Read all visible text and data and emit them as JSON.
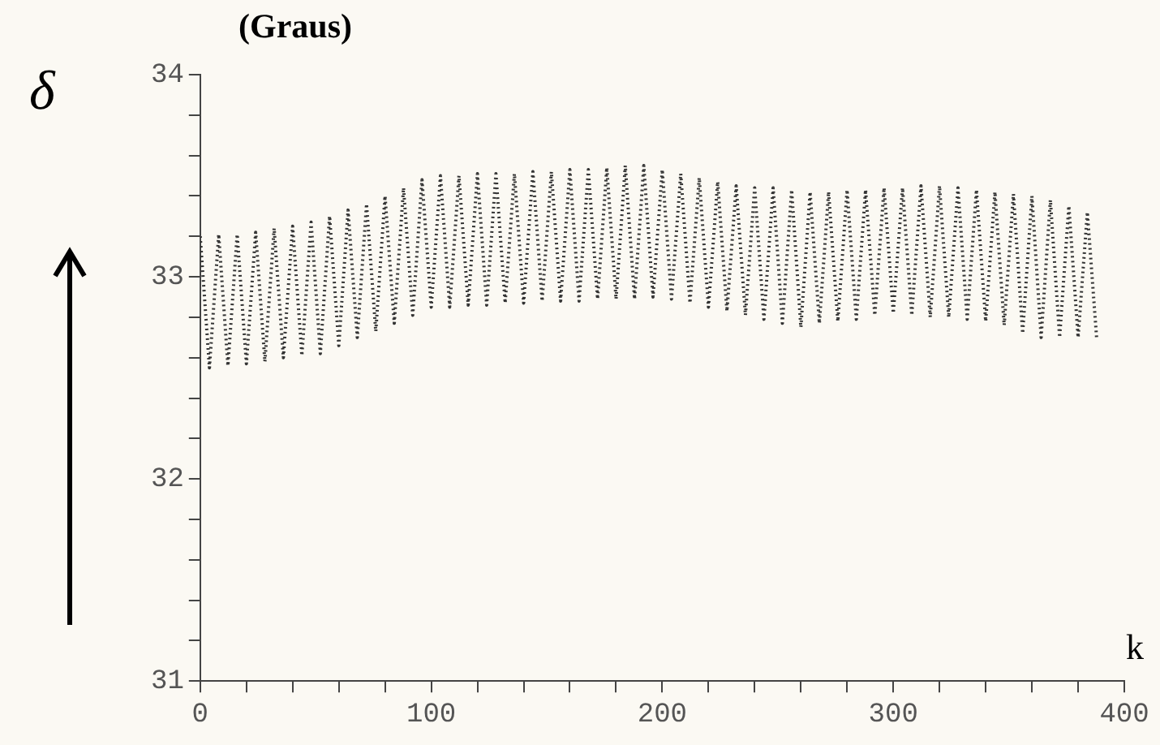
{
  "chart_data": {
    "type": "line",
    "ylabel": "δ",
    "xlabel": "k",
    "annotations": [
      "(Graus)"
    ],
    "x": [
      0,
      4,
      8,
      12,
      16,
      20,
      24,
      28,
      32,
      36,
      40,
      44,
      48,
      52,
      56,
      60,
      64,
      68,
      72,
      76,
      80,
      84,
      88,
      92,
      96,
      100,
      104,
      108,
      112,
      116,
      120,
      124,
      128,
      132,
      136,
      140,
      144,
      148,
      152,
      156,
      160,
      164,
      168,
      172,
      176,
      180,
      184,
      188,
      192,
      196,
      200,
      204,
      208,
      212,
      216,
      220,
      224,
      228,
      232,
      236,
      240,
      244,
      248,
      252,
      256,
      260,
      264,
      268,
      272,
      276,
      280,
      284,
      288,
      292,
      296,
      300,
      304,
      308,
      312,
      316,
      320,
      324,
      328,
      332,
      336,
      340,
      344,
      348,
      352,
      356,
      360,
      364,
      368,
      372,
      376,
      380,
      384,
      388
    ],
    "series": [
      {
        "color": "#333333",
        "values": [
          33.2,
          32.55,
          33.21,
          32.56,
          33.21,
          32.57,
          33.22,
          32.58,
          33.24,
          32.6,
          33.25,
          32.61,
          33.27,
          32.62,
          33.3,
          32.66,
          33.33,
          32.7,
          33.36,
          32.73,
          33.4,
          32.77,
          33.44,
          32.81,
          33.48,
          32.85,
          33.5,
          32.85,
          33.5,
          32.86,
          33.51,
          32.86,
          33.51,
          32.87,
          33.51,
          32.87,
          33.52,
          32.88,
          33.52,
          32.88,
          33.53,
          32.88,
          33.53,
          32.89,
          33.54,
          32.89,
          33.55,
          32.89,
          33.55,
          32.9,
          33.53,
          32.89,
          33.51,
          32.87,
          33.49,
          32.85,
          33.47,
          32.83,
          33.45,
          32.81,
          33.44,
          32.79,
          33.44,
          32.77,
          33.43,
          32.75,
          33.42,
          32.77,
          33.42,
          32.78,
          33.43,
          32.79,
          33.43,
          32.81,
          33.44,
          32.82,
          33.44,
          32.81,
          33.45,
          32.8,
          33.45,
          32.8,
          33.44,
          32.79,
          33.43,
          32.78,
          33.42,
          32.76,
          33.41,
          32.72,
          33.4,
          32.7,
          33.38,
          32.7,
          33.35,
          32.7,
          33.32,
          32.7
        ]
      }
    ],
    "xlim": [
      0,
      400
    ],
    "xticks": [
      0,
      {
        "value": 20,
        "label": null
      },
      {
        "value": 40,
        "label": null
      },
      {
        "value": 60,
        "label": null
      },
      {
        "value": 80,
        "label": null
      },
      100,
      {
        "value": 120,
        "label": null
      },
      {
        "value": 140,
        "label": null
      },
      {
        "value": 160,
        "label": null
      },
      {
        "value": 180,
        "label": null
      },
      200,
      {
        "value": 220,
        "label": null
      },
      {
        "value": 240,
        "label": null
      },
      {
        "value": 260,
        "label": null
      },
      {
        "value": 280,
        "label": null
      },
      300,
      {
        "value": 320,
        "label": null
      },
      {
        "value": 340,
        "label": null
      },
      {
        "value": 360,
        "label": null
      },
      {
        "value": 380,
        "label": null
      },
      400
    ],
    "ylim": [
      31,
      34
    ],
    "yticks": [
      31,
      {
        "value": 31.2,
        "label": null
      },
      {
        "value": 31.4,
        "label": null
      },
      {
        "value": 31.6,
        "label": null
      },
      {
        "value": 31.8,
        "label": null
      },
      32,
      {
        "value": 32.2,
        "label": null
      },
      {
        "value": 32.4,
        "label": null
      },
      {
        "value": 32.6,
        "label": null
      },
      {
        "value": 32.8,
        "label": null
      },
      33,
      {
        "value": 33.2,
        "label": null
      },
      {
        "value": 33.4,
        "label": null
      },
      {
        "value": 33.6,
        "label": null
      },
      {
        "value": 33.8,
        "label": null
      },
      34
    ],
    "grid": false,
    "legend": false,
    "marker": "none",
    "line_style": "dotted"
  }
}
